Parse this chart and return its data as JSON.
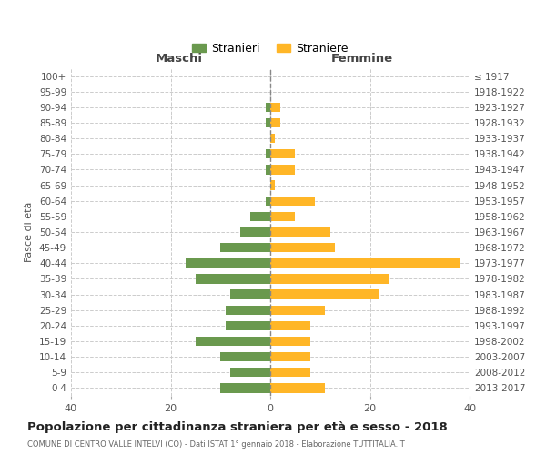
{
  "age_groups_bottom_to_top": [
    "0-4",
    "5-9",
    "10-14",
    "15-19",
    "20-24",
    "25-29",
    "30-34",
    "35-39",
    "40-44",
    "45-49",
    "50-54",
    "55-59",
    "60-64",
    "65-69",
    "70-74",
    "75-79",
    "80-84",
    "85-89",
    "90-94",
    "95-99",
    "100+"
  ],
  "birth_years_bottom_to_top": [
    "2013-2017",
    "2008-2012",
    "2003-2007",
    "1998-2002",
    "1993-1997",
    "1988-1992",
    "1983-1987",
    "1978-1982",
    "1973-1977",
    "1968-1972",
    "1963-1967",
    "1958-1962",
    "1953-1957",
    "1948-1952",
    "1943-1947",
    "1938-1942",
    "1933-1937",
    "1928-1932",
    "1923-1927",
    "1918-1922",
    "≤ 1917"
  ],
  "males_bottom_to_top": [
    10,
    8,
    10,
    15,
    9,
    9,
    8,
    15,
    17,
    10,
    6,
    4,
    1,
    0,
    1,
    1,
    0,
    1,
    1,
    0,
    0
  ],
  "females_bottom_to_top": [
    11,
    8,
    8,
    8,
    8,
    11,
    22,
    24,
    38,
    13,
    12,
    5,
    9,
    1,
    5,
    5,
    1,
    2,
    2,
    0,
    0
  ],
  "male_color": "#6a994e",
  "female_color": "#ffb627",
  "background_color": "#ffffff",
  "grid_color": "#cccccc",
  "xlim": 40,
  "title": "Popolazione per cittadinanza straniera per età e sesso - 2018",
  "subtitle": "COMUNE DI CENTRO VALLE INTELVI (CO) - Dati ISTAT 1° gennaio 2018 - Elaborazione TUTTITALIA.IT",
  "left_header": "Maschi",
  "right_header": "Femmine",
  "left_yaxis_label": "Fasce di età",
  "legend_stranieri": "Stranieri",
  "legend_straniere": "Straniere"
}
